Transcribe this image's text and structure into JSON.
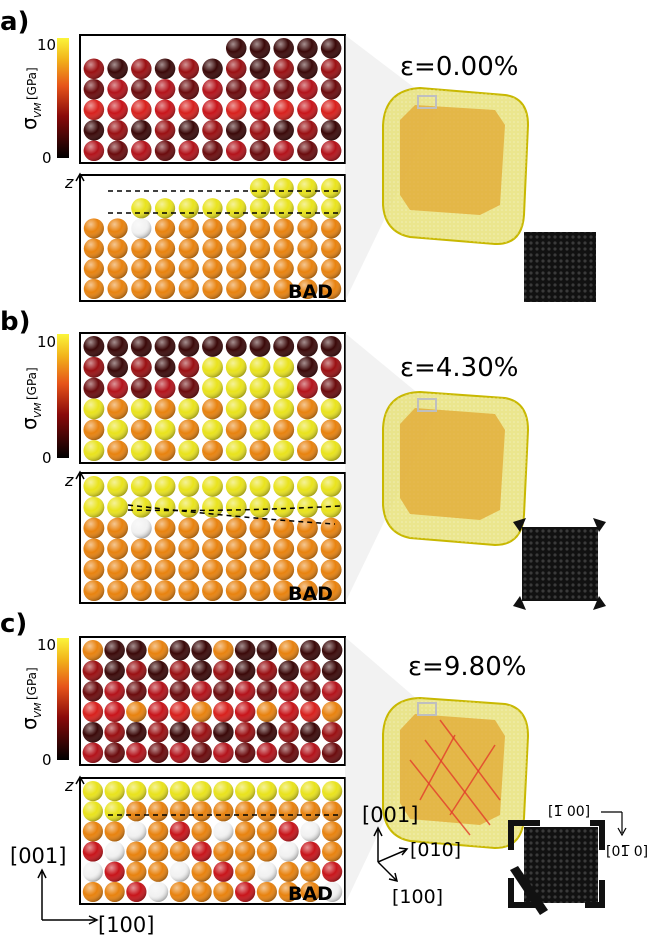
{
  "panels": [
    {
      "letter": "a)",
      "strain": "ε=0.00%",
      "colorbar": {
        "max": "10",
        "min": "0",
        "symbol": "σ",
        "subscript": "VM",
        "unit": "[GPa]"
      },
      "z_label": "z",
      "badge": "BAD"
    },
    {
      "letter": "b)",
      "strain": "ε=4.30%",
      "colorbar": {
        "max": "10",
        "min": "0",
        "symbol": "σ",
        "subscript": "VM",
        "unit": "[GPa]"
      },
      "z_label": "z",
      "badge": "BAD"
    },
    {
      "letter": "c)",
      "strain": "ε=9.80%",
      "colorbar": {
        "max": "10",
        "min": "0",
        "symbol": "σ",
        "subscript": "VM",
        "unit": "[GPa]"
      },
      "z_label": "z",
      "badge": "BAD"
    }
  ],
  "axes_left": {
    "vertical": "[001]",
    "horizontal": "[100]"
  },
  "axes_crystal": {
    "up": "[001]",
    "right": "[010]",
    "front": "[100]"
  },
  "axes_defect": {
    "top": "[1̅ 00]",
    "side": "[01̅ 0]"
  },
  "colors": {
    "gold": "#e8e27a",
    "gold_edge": "#c8b800",
    "core": "#e1a22a",
    "atom_orange": "#e8820e",
    "atom_yellow": "#e9e31c",
    "atom_red": "#c8141a",
    "atom_dark": "#3a0808",
    "black": "#111111"
  }
}
